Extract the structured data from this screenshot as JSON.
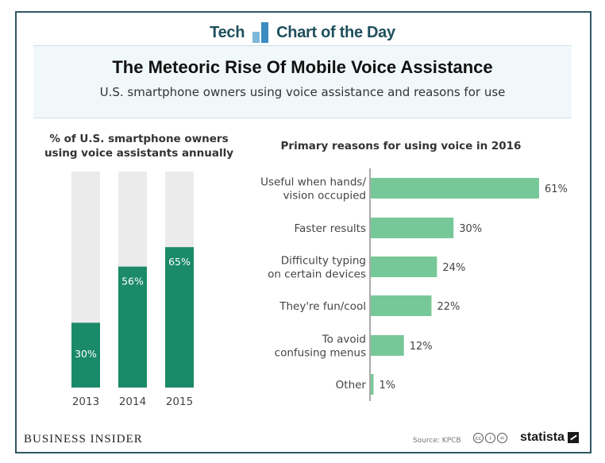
{
  "header": {
    "brand_left": "Tech",
    "brand_right": "Chart of the Day",
    "title": "The Meteoric Rise Of Mobile Voice Assistance",
    "subtitle": "U.S. smartphone owners using voice assistance and reasons for use"
  },
  "chart_data": [
    {
      "type": "bar",
      "orientation": "vertical",
      "title": "% of U.S. smartphone owners using voice assistants annually",
      "title_lines": [
        "% of U.S. smartphone owners",
        "using voice assistants annually"
      ],
      "categories": [
        "2013",
        "2014",
        "2015"
      ],
      "values": [
        30,
        56,
        65
      ],
      "value_labels": [
        "30%",
        "56%",
        "65%"
      ],
      "ylim": [
        0,
        100
      ],
      "bar_color": "#1a8a68",
      "track_color": "#ebebeb",
      "grid": false
    },
    {
      "type": "bar",
      "orientation": "horizontal",
      "title": "Primary reasons for using voice in 2016",
      "categories": [
        [
          "Useful when hands/",
          "vision occupied"
        ],
        [
          "Faster results"
        ],
        [
          "Difficulty typing",
          "on certain devices"
        ],
        [
          "They're fun/cool"
        ],
        [
          "To avoid",
          "confusing menus"
        ],
        [
          "Other"
        ]
      ],
      "values": [
        61,
        30,
        24,
        22,
        12,
        1
      ],
      "value_labels": [
        "61%",
        "30%",
        "24%",
        "22%",
        "12%",
        "1%"
      ],
      "xlim": [
        0,
        61
      ],
      "bar_color": "#77c898",
      "grid": false
    }
  ],
  "footer": {
    "publisher": "BUSINESS INSIDER",
    "source": "Source: KPCB",
    "license_icons": [
      "cc",
      "i",
      "="
    ],
    "brand": "statista"
  }
}
